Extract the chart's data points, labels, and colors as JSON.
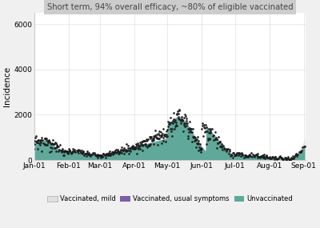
{
  "title": "Short term, 94% overall efficacy, ~80% of eligible vaccinated",
  "ylabel": "Incidence",
  "xlabel": "",
  "xlim_days": [
    0,
    245
  ],
  "ylim": [
    0,
    6500
  ],
  "yticks": [
    0,
    2000,
    4000,
    6000
  ],
  "background_color": "#f0f0f0",
  "panel_color": "#ffffff",
  "title_fontsize": 7.2,
  "axis_fontsize": 7.5,
  "tick_fontsize": 6.5,
  "legend": {
    "vaccinated_mild": {
      "label": "Vaccinated, mild",
      "color": "#e0e0e0"
    },
    "vaccinated_usual": {
      "label": "Vaccinated, usual symptoms",
      "color": "#7b5ea7"
    },
    "unvaccinated": {
      "label": "Unvaccinated",
      "color": "#5fa89a"
    }
  },
  "x_tick_labels": [
    "Jan-01",
    "Feb-01",
    "Mar-01",
    "Apr-01",
    "May-01",
    "Jun-01",
    "Jul-01",
    "Aug-01",
    "Sep-01"
  ],
  "x_tick_days": [
    0,
    31,
    59,
    90,
    120,
    151,
    181,
    212,
    243
  ]
}
